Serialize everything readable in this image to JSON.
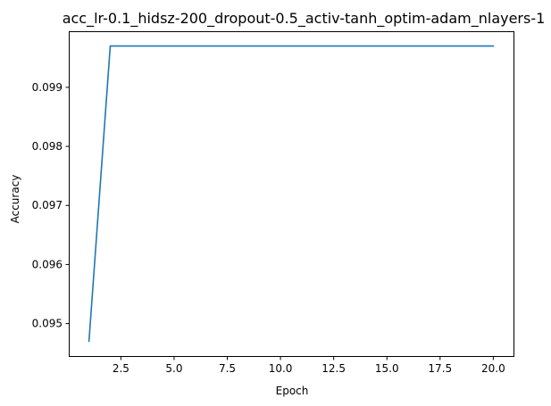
{
  "chart_data": {
    "type": "line",
    "title": "acc_lr-0.1_hidsz-200_dropout-0.5_activ-tanh_optim-adam_nlayers-1",
    "xlabel": "Epoch",
    "ylabel": "Accuracy",
    "xlim": [
      0.05,
      20.95
    ],
    "ylim": [
      0.09445,
      0.09995
    ],
    "xticks": [
      2.5,
      5.0,
      7.5,
      10.0,
      12.5,
      15.0,
      17.5,
      20.0
    ],
    "xtick_labels": [
      "2.5",
      "5.0",
      "7.5",
      "10.0",
      "12.5",
      "15.0",
      "17.5",
      "20.0"
    ],
    "yticks": [
      0.095,
      0.096,
      0.097,
      0.098,
      0.099
    ],
    "ytick_labels": [
      "0.095",
      "0.096",
      "0.097",
      "0.098",
      "0.099"
    ],
    "grid": false,
    "series": [
      {
        "color": "#1f77b4",
        "x": [
          1,
          2,
          3,
          4,
          5,
          6,
          7,
          8,
          9,
          10,
          11,
          12,
          13,
          14,
          15,
          16,
          17,
          18,
          19,
          20
        ],
        "y": [
          0.0947,
          0.0997,
          0.0997,
          0.0997,
          0.0997,
          0.0997,
          0.0997,
          0.0997,
          0.0997,
          0.0997,
          0.0997,
          0.0997,
          0.0997,
          0.0997,
          0.0997,
          0.0997,
          0.0997,
          0.0997,
          0.0997,
          0.0997
        ]
      }
    ]
  }
}
